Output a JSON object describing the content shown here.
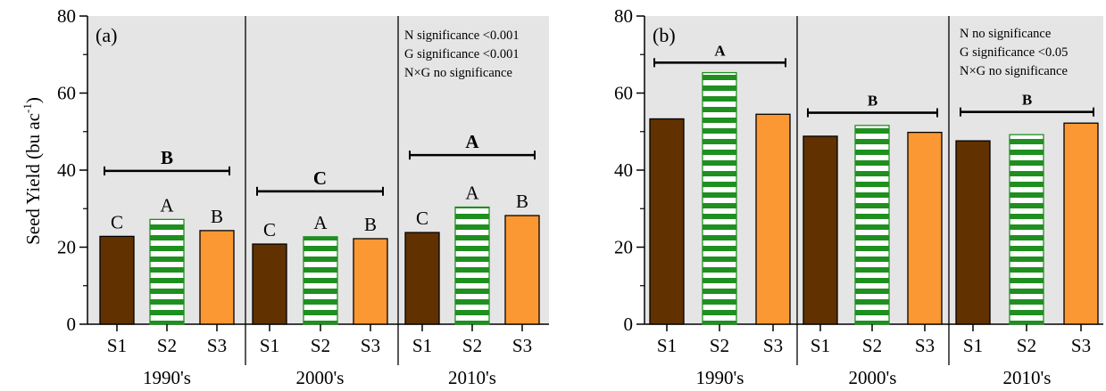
{
  "figure": {
    "ylabel_main": "Seed Yield (bu ac",
    "ylabel_sup": "-1",
    "ylabel_close": ")"
  },
  "colors": {
    "S1": "#613100",
    "S2_stroke": "#1f8f1f",
    "S3": "#fb9833",
    "plot_bg": "#e5e5e5"
  },
  "chart_data": [
    {
      "type": "bar",
      "panel": "(a)",
      "ylim": [
        0,
        80
      ],
      "yticks": [
        "0",
        "20",
        "40",
        "60",
        "80"
      ],
      "groups": [
        "1990's",
        "2000's",
        "2010's"
      ],
      "categories": [
        "S1",
        "S2",
        "S3"
      ],
      "series_values": [
        [
          22.8,
          27.2,
          24.3
        ],
        [
          20.8,
          22.7,
          22.2
        ],
        [
          23.8,
          30.4,
          28.2
        ]
      ],
      "bar_letters": [
        [
          "C",
          "A",
          "B"
        ],
        [
          "C",
          "A",
          "B"
        ],
        [
          "C",
          "A",
          "B"
        ]
      ],
      "group_letters": [
        "B",
        "C",
        "A"
      ],
      "group_bracket_y": [
        39.8,
        34.5,
        43.9
      ],
      "annotations": [
        "N  significance <0.001",
        "G  significance <0.001",
        "N×G  no significance"
      ]
    },
    {
      "type": "bar",
      "panel": "(b)",
      "ylim": [
        0,
        80
      ],
      "yticks": [
        "0",
        "20",
        "40",
        "60",
        "80"
      ],
      "groups": [
        "1990's",
        "2000's",
        "2010's"
      ],
      "categories": [
        "S1",
        "S2",
        "S3"
      ],
      "series_values": [
        [
          53.3,
          65.3,
          54.5
        ],
        [
          48.8,
          51.6,
          49.8
        ],
        [
          47.6,
          49.2,
          52.2
        ]
      ],
      "bar_letters": [
        [
          "",
          "",
          ""
        ],
        [
          "",
          "",
          ""
        ],
        [
          "",
          "",
          ""
        ]
      ],
      "group_letters": [
        "A",
        "B",
        "B"
      ],
      "group_bracket_y": [
        67.9,
        54.9,
        55.1
      ],
      "annotations": [
        "N  no significance",
        "G  significance <0.05",
        "N×G  no significance"
      ]
    }
  ]
}
